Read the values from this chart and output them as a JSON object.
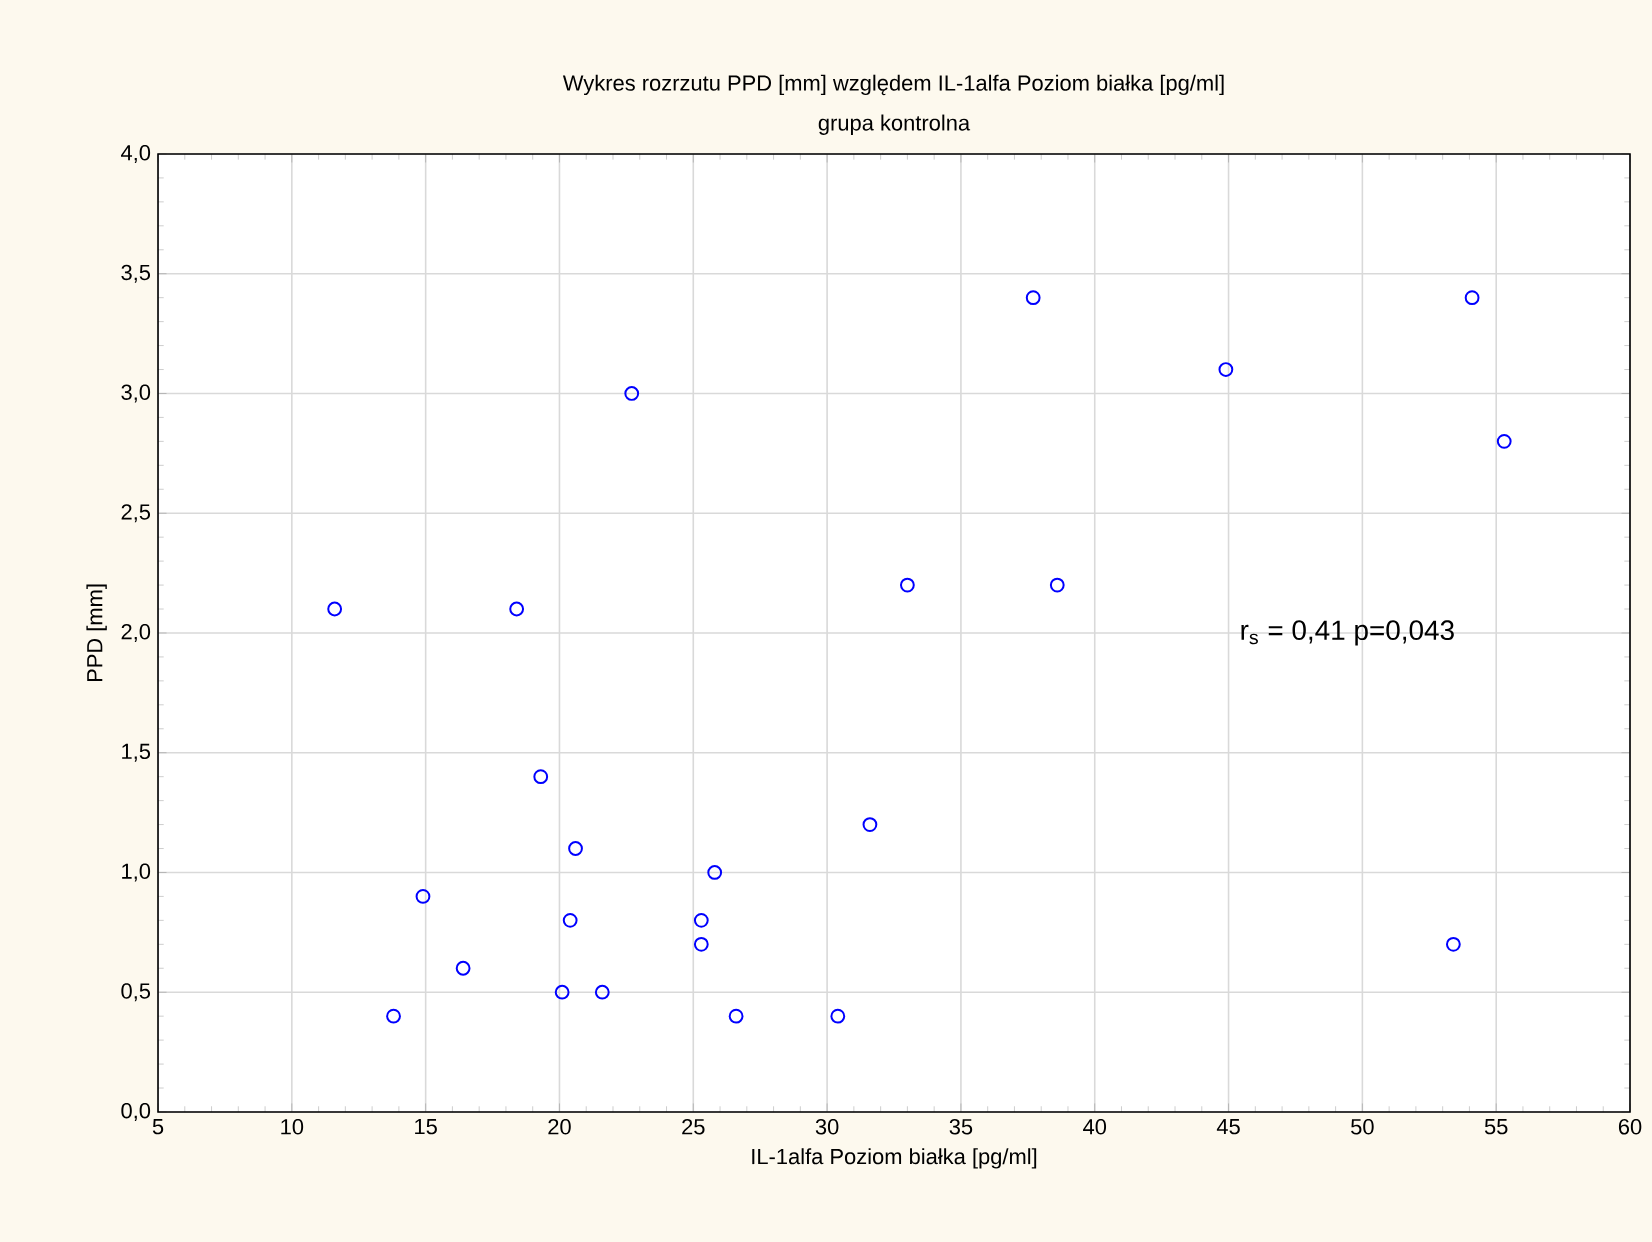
{
  "chart_data": {
    "type": "scatter",
    "title": "Wykres rozrzutu    PPD [mm] względem IL-1alfa Poziom  białka [pg/ml]",
    "subtitle": "grupa kontrolna",
    "xlabel": "IL-1alfa Poziom  białka [pg/ml]",
    "ylabel": "PPD [mm]",
    "annotations": [
      "r$_{s}$ = 0,41 p=0,043"
    ],
    "x": [
      11.6,
      18.4,
      19.3,
      20.6,
      14.9,
      20.4,
      25.8,
      25.3,
      25.3,
      16.4,
      20.1,
      21.6,
      13.8,
      26.6,
      22.7,
      37.7,
      33.0,
      38.6,
      31.6,
      30.4,
      44.9,
      54.1,
      55.3,
      53.4
    ],
    "values": [
      2.1,
      2.1,
      1.4,
      1.1,
      0.9,
      0.8,
      1.0,
      0.8,
      0.7,
      0.6,
      0.5,
      0.5,
      0.4,
      0.4,
      3.0,
      3.4,
      2.2,
      2.2,
      1.2,
      0.4,
      3.1,
      3.4,
      2.8,
      0.7
    ],
    "color": "#0000ff",
    "marker": "circle",
    "grid": true,
    "xlim": [
      5,
      60
    ],
    "xticks": [
      5,
      10,
      15,
      20,
      25,
      30,
      35,
      40,
      45,
      50,
      55,
      60
    ],
    "ylim": [
      0,
      4
    ],
    "yticks": [
      {
        "value": 0,
        "label": "0,0"
      },
      {
        "value": 0.5,
        "label": "0,5"
      },
      {
        "value": 1,
        "label": "1,0"
      },
      {
        "value": 1.5,
        "label": "1,5"
      },
      {
        "value": 2,
        "label": "2,0"
      },
      {
        "value": 2.5,
        "label": "2,5"
      },
      {
        "value": 3,
        "label": "3,0"
      },
      {
        "value": 3.5,
        "label": "3,5"
      },
      {
        "value": 4,
        "label": "4,0"
      }
    ]
  }
}
